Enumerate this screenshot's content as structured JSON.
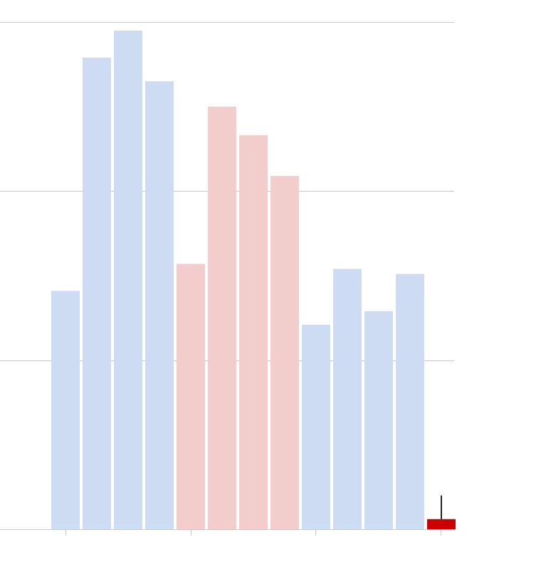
{
  "chart_data": {
    "type": "bar",
    "title": "",
    "xlabel": "",
    "ylabel": "",
    "ylim": [
      0,
      3
    ],
    "gridlines_y": [
      1,
      2,
      3
    ],
    "grid": true,
    "legend": "none",
    "groups": [
      {
        "color": "#cddbf3",
        "values": [
          1.41,
          2.79,
          2.95,
          2.65
        ]
      },
      {
        "color": "#f3cccc",
        "values": [
          1.57,
          2.5,
          2.33,
          2.09
        ]
      },
      {
        "color": "#cddbf3",
        "values": [
          1.21,
          1.54,
          1.29,
          1.51
        ]
      }
    ],
    "highlight": {
      "color": "#cc0000",
      "value": 0.06,
      "error_top": 0.2
    }
  }
}
